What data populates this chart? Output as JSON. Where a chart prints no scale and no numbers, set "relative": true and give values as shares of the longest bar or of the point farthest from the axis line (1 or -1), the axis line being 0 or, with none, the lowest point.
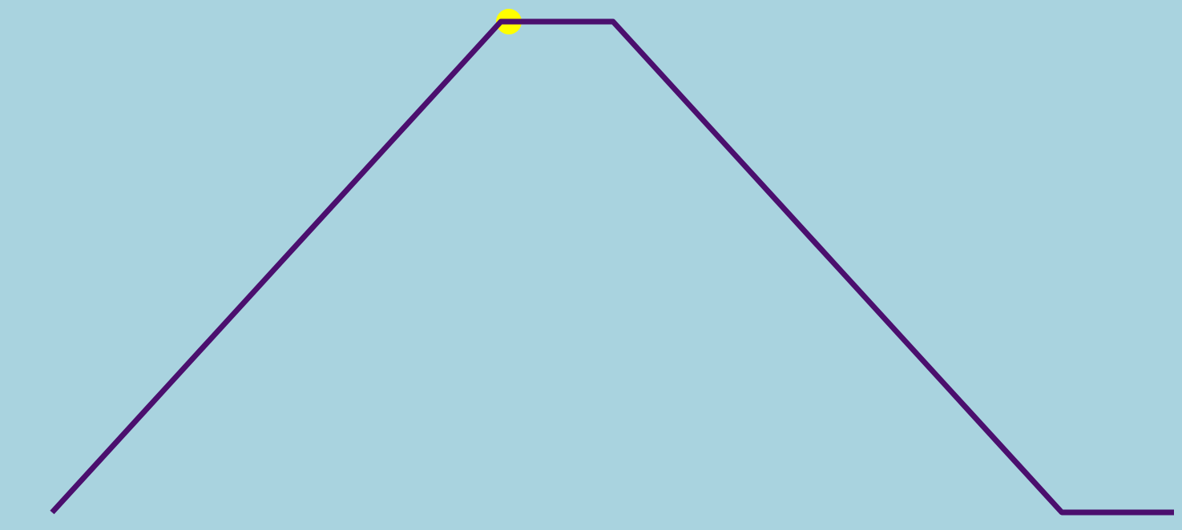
{
  "chart_data": {
    "type": "line",
    "relative": true,
    "tick_labels": false,
    "line_style": "solid",
    "marker": "none",
    "categories": [
      null,
      null,
      null,
      null,
      null,
      null,
      null,
      null,
      null,
      null,
      null
    ],
    "series": [
      {
        "color": "#4b0f6e",
        "values": [
          0,
          0.25,
          0.5,
          0.75,
          1,
          1,
          0.75,
          0.5,
          0.25,
          0,
          0
        ]
      }
    ]
  }
}
